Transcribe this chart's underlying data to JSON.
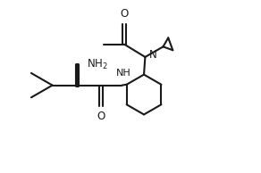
{
  "background_color": "#ffffff",
  "line_color": "#1a1a1a",
  "line_width": 1.5,
  "font_size": 8.5,
  "figsize": [
    2.92,
    1.94
  ],
  "dpi": 100,
  "xlim": [
    0,
    10.5
  ],
  "ylim": [
    0,
    7.0
  ]
}
